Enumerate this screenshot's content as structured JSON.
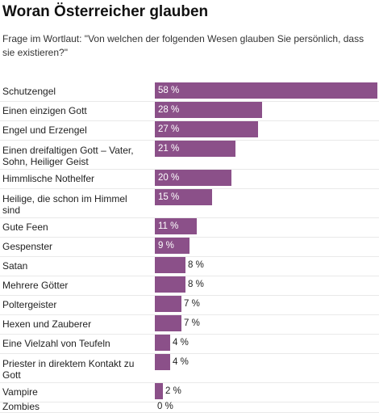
{
  "title": "Woran Österreicher glauben",
  "subtitle": "Frage im Wortlaut: \"Von welchen der folgenden Wesen glauben Sie persönlich, dass sie existieren?\"",
  "colors": {
    "bar": "#8b5089",
    "label_inside": "#ffffff",
    "label_outside": "#222222"
  },
  "chart_data": {
    "type": "bar",
    "orientation": "horizontal",
    "xlim": [
      0,
      58
    ],
    "categories": [
      "Schutzengel",
      "Einen einzigen Gott",
      "Engel und Erzengel",
      "Einen dreifaltigen Gott – Vater, Sohn, Heiliger Geist",
      "Himmlische Nothelfer",
      "Heilige, die schon im Himmel sind",
      "Gute Feen",
      "Gespenster",
      "Satan",
      "Mehrere Götter",
      "Poltergeister",
      "Hexen und Zauberer",
      "Eine Vielzahl von Teufeln",
      "Priester in direktem Kontakt zu Gott",
      "Vampire",
      "Zombies"
    ],
    "values": [
      58,
      28,
      27,
      21,
      20,
      15,
      11,
      9,
      8,
      8,
      7,
      7,
      4,
      4,
      2,
      0
    ],
    "value_labels": [
      "58 %",
      "28 %",
      "27 %",
      "21 %",
      "20 %",
      "15 %",
      "11 %",
      "9 %",
      "8 %",
      "8 %",
      "7 %",
      "7 %",
      "4 %",
      "4 %",
      "2 %",
      "0 %"
    ]
  }
}
